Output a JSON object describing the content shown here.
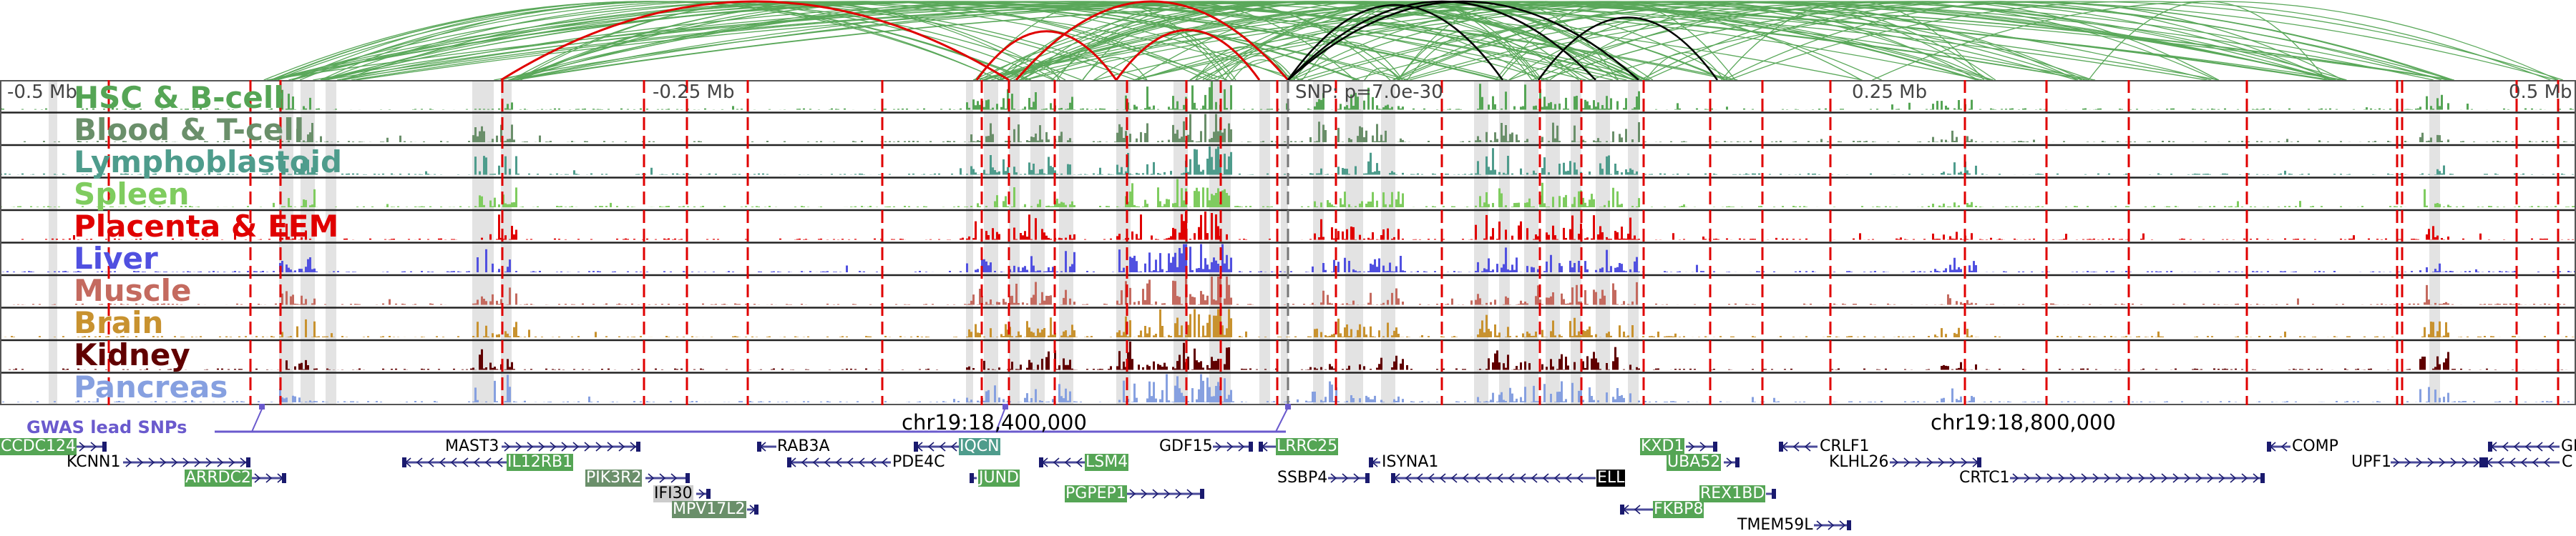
{
  "axis": {
    "left": "-0.5 Mb",
    "left_mid": "-0.25 Mb",
    "snp": "SNP: p=7.0e-30",
    "right_mid": "0.25 Mb",
    "right": "0.5 Mb"
  },
  "tracks": [
    {
      "name": "HSC & B-cell",
      "color": "#55a555"
    },
    {
      "name": "Blood & T-cell",
      "color": "#6a8f6a"
    },
    {
      "name": "Lymphoblastoid",
      "color": "#4e9c8c"
    },
    {
      "name": "Spleen",
      "color": "#7fcc5f"
    },
    {
      "name": "Placenta & EEM",
      "color": "#e00000"
    },
    {
      "name": "Liver",
      "color": "#5050e0"
    },
    {
      "name": "Muscle",
      "color": "#c46a5f"
    },
    {
      "name": "Brain",
      "color": "#c8922f"
    },
    {
      "name": "Kidney",
      "color": "#600000"
    },
    {
      "name": "Pancreas",
      "color": "#86a0e0"
    }
  ],
  "gwas": {
    "label": "GWAS lead SNPs",
    "color": "#6a5acd"
  },
  "coordinates": [
    "chr19:18,400,000",
    "chr19:18,800,000"
  ],
  "genes": [
    "CCDC124",
    "KCNN1",
    "ARRDC2",
    "MAST3",
    "IL12RB1",
    "PIK3R2",
    "IFI30",
    "MPV17L2",
    "RAB3A",
    "PDE4C",
    "IQCN",
    "JUND",
    "LSM4",
    "PGPEP1",
    "GDF15",
    "LRRC25",
    "ISYNA1",
    "SSBP4",
    "ELL",
    "KXD1",
    "UBA52",
    "REX1BD",
    "FKBP8",
    "TMEM59L",
    "CRLF1",
    "KLHL26",
    "CRTC1",
    "COMP",
    "UPF1",
    "GI",
    "C"
  ]
}
